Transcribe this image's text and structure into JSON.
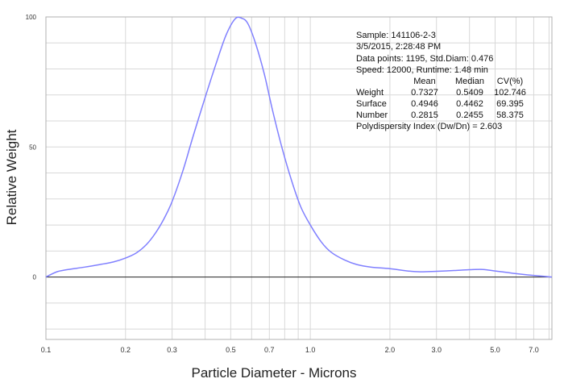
{
  "chart_data": {
    "type": "line",
    "title": "",
    "xlabel": "Particle Diameter  -  Microns",
    "ylabel": "Relative Weight",
    "x_scale": "log",
    "xlim": [
      0.1,
      8.2
    ],
    "ylim": [
      -24,
      100
    ],
    "x_ticks": [
      "0.1",
      "0.2",
      "0.3",
      "0.5",
      "0.7",
      "1.0",
      "2.0",
      "3.0",
      "5.0",
      "7.0"
    ],
    "y_ticks": [
      "0",
      "50",
      "100"
    ],
    "grid": true,
    "zero_line": true,
    "series": [
      {
        "color": "#8080ff",
        "x": [
          0.1,
          0.11,
          0.12,
          0.14,
          0.16,
          0.18,
          0.2,
          0.22,
          0.24,
          0.26,
          0.28,
          0.3,
          0.33,
          0.36,
          0.4,
          0.44,
          0.48,
          0.52,
          0.55,
          0.58,
          0.62,
          0.67,
          0.72,
          0.78,
          0.85,
          0.92,
          1.0,
          1.1,
          1.2,
          1.35,
          1.5,
          1.7,
          2.0,
          2.3,
          2.6,
          3.0,
          3.5,
          4.0,
          4.5,
          5.0,
          5.5,
          6.0,
          7.0,
          8.2
        ],
        "y": [
          0,
          2,
          2.8,
          3.8,
          4.8,
          5.8,
          7.3,
          9.3,
          12.5,
          17,
          22.5,
          29,
          41,
          54,
          69,
          82,
          93,
          99.3,
          99.5,
          97.5,
          90,
          78,
          64,
          50,
          37,
          27,
          20,
          13.5,
          9.5,
          6.5,
          4.8,
          3.8,
          3.2,
          2.4,
          2.0,
          2.2,
          2.5,
          2.8,
          2.9,
          2.3,
          1.8,
          1.3,
          0.6,
          0
        ]
      }
    ]
  },
  "info_box": {
    "sample": "Sample: 141106-2-3",
    "datetime": "3/5/2015,    2:28:48 PM",
    "datapoints": "Data points: 1195,  Std.Diam: 0.476",
    "speed": "Speed: 12000,  Runtime: 1.48 min",
    "table": {
      "headers": [
        "Mean",
        "Median",
        "CV(%)"
      ],
      "rows": [
        {
          "label": "Weight",
          "mean": "0.7327",
          "median": "0.5409",
          "cv": "102.746"
        },
        {
          "label": "Surface",
          "mean": "0.4946",
          "median": "0.4462",
          "cv": "69.395"
        },
        {
          "label": "Number",
          "mean": "0.2815",
          "median": "0.2455",
          "cv": "58.375"
        }
      ]
    },
    "pdi": "Polydispersity Index (Dw/Dn) = 2.603"
  }
}
